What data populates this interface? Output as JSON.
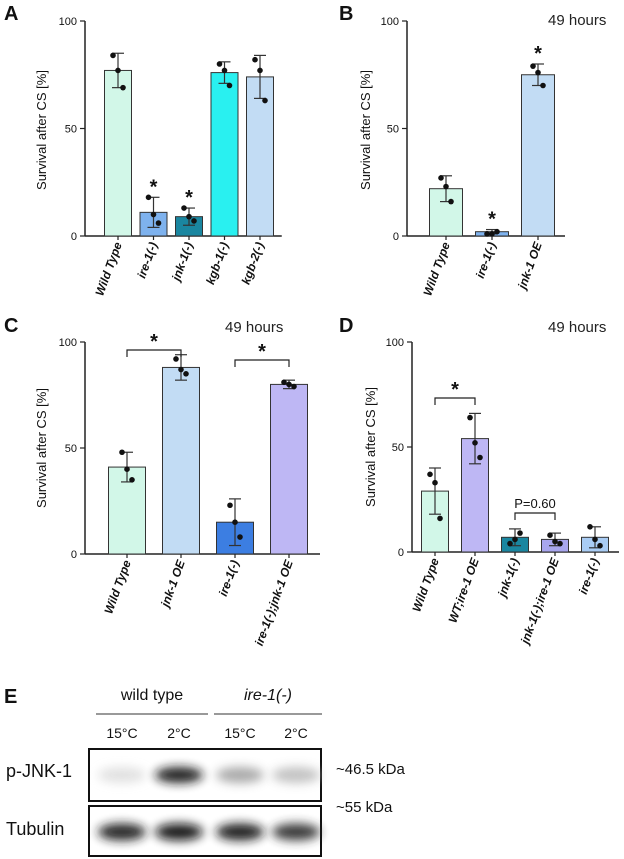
{
  "chart_data": [
    {
      "panel": "A",
      "type": "bar",
      "ylabel": "Survival after CS [%]",
      "ylim": [
        0,
        100
      ],
      "yticks": [
        0,
        50,
        100
      ],
      "categories": [
        "Wild Type",
        "ire-1(-)",
        "jnk-1(-)",
        "kgb-1(-)",
        "kgb-2(-)"
      ],
      "values": [
        77,
        11,
        9,
        76,
        74
      ],
      "errors": [
        8,
        7,
        4,
        5,
        10
      ],
      "points": [
        [
          84,
          69,
          77
        ],
        [
          18,
          6,
          10
        ],
        [
          13,
          7,
          9
        ],
        [
          80,
          70,
          77
        ],
        [
          82,
          63,
          77
        ]
      ],
      "colors": [
        "#d2f7e8",
        "#7eb2ee",
        "#1a86a0",
        "#29f0f0",
        "#c2dcf4"
      ],
      "significance": [
        {
          "index": 1,
          "label": "*"
        },
        {
          "index": 2,
          "label": "*"
        }
      ],
      "brackets": []
    },
    {
      "panel": "B",
      "type": "bar",
      "subtitle": "49 hours",
      "ylabel": "Survival after CS [%]",
      "ylim": [
        0,
        100
      ],
      "yticks": [
        0,
        50,
        100
      ],
      "categories": [
        "Wild Type",
        "ire-1(-)",
        "jnk-1 OE"
      ],
      "values": [
        22,
        2,
        75
      ],
      "errors": [
        6,
        1,
        5
      ],
      "points": [
        [
          27,
          16,
          23
        ],
        [
          1,
          2,
          1
        ],
        [
          79,
          70,
          76
        ]
      ],
      "colors": [
        "#d2f7e8",
        "#7eb2ee",
        "#c2dcf4"
      ],
      "significance": [
        {
          "index": 1,
          "label": "*"
        },
        {
          "index": 2,
          "label": "*"
        }
      ],
      "brackets": []
    },
    {
      "panel": "C",
      "type": "bar",
      "subtitle": "49 hours",
      "ylabel": "Survival after CS [%]",
      "ylim": [
        0,
        100
      ],
      "yticks": [
        0,
        50,
        100
      ],
      "categories": [
        "Wild Type",
        "jnk-1 OE",
        "ire-1(-)",
        "ire-1(-);jnk-1 OE"
      ],
      "values": [
        41,
        88,
        15,
        80
      ],
      "errors": [
        7,
        6,
        11,
        2
      ],
      "points": [
        [
          48,
          35,
          40
        ],
        [
          92,
          85,
          87
        ],
        [
          23,
          8,
          15
        ],
        [
          81,
          79,
          80
        ]
      ],
      "colors": [
        "#d2f7e8",
        "#c2dcf4",
        "#3c7ee2",
        "#beb7f4"
      ],
      "significance": [],
      "brackets": [
        {
          "from": 0,
          "to": 1,
          "label": "*"
        },
        {
          "from": 2,
          "to": 3,
          "label": "*"
        }
      ]
    },
    {
      "panel": "D",
      "type": "bar",
      "subtitle": "49 hours",
      "ylabel": "Survival after CS [%]",
      "ylim": [
        0,
        100
      ],
      "yticks": [
        0,
        50,
        100
      ],
      "categories": [
        "Wild Type",
        "WT;ire-1 OE",
        "jnk-1(-)",
        "jnk-1(-);ire-1 OE",
        "ire-1(-)"
      ],
      "values": [
        29,
        54,
        7,
        6,
        7
      ],
      "errors": [
        11,
        12,
        4,
        3,
        5
      ],
      "points": [
        [
          37,
          16,
          33
        ],
        [
          64,
          45,
          52
        ],
        [
          4,
          9,
          6
        ],
        [
          8,
          4,
          5
        ],
        [
          12,
          3,
          6
        ]
      ],
      "colors": [
        "#d2f7e8",
        "#beb7f4",
        "#1a86a0",
        "#a8a6ee",
        "#a9ccf4"
      ],
      "significance": [],
      "brackets": [
        {
          "from": 0,
          "to": 1,
          "label": "*"
        },
        {
          "from": 2,
          "to": 3,
          "label": "P=0.60"
        }
      ]
    }
  ],
  "blot": {
    "panel": "E",
    "group_labels": [
      "wild type",
      "ire-1(-)"
    ],
    "temperatures": [
      "15°C",
      "2°C",
      "15°C",
      "2°C"
    ],
    "rows": [
      {
        "label": "p-JNK-1",
        "size": "~46.5 kDa",
        "intensities": [
          0.12,
          0.9,
          0.35,
          0.25
        ]
      },
      {
        "label": "Tubulin",
        "size": "~55 kDa",
        "intensities": [
          0.88,
          0.95,
          0.9,
          0.8
        ]
      }
    ]
  }
}
